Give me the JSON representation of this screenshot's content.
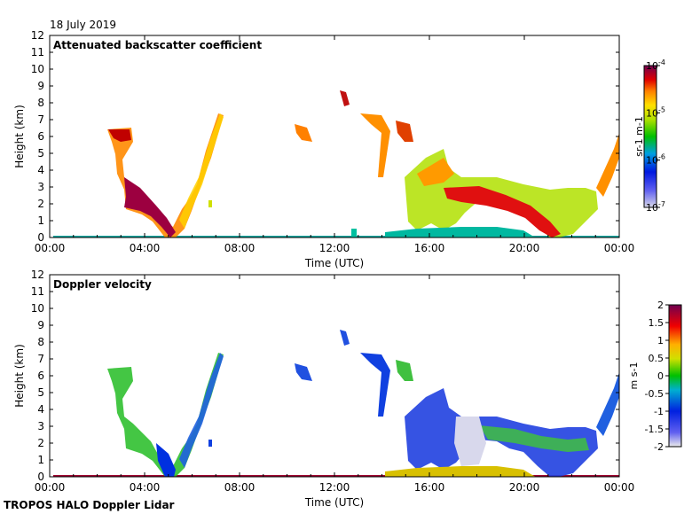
{
  "date_label": "18 July 2019",
  "footer": "TROPOS HALO Doppler Lidar",
  "chart_data": [
    {
      "type": "heatmap",
      "title": "Attenuated backscatter coefficient",
      "xlabel": "Time (UTC)",
      "ylabel": "Height (km)",
      "xlim": [
        0,
        24
      ],
      "ylim": [
        0,
        12
      ],
      "xticks": [
        "00:00",
        "04:00",
        "08:00",
        "12:00",
        "16:00",
        "20:00",
        "00:00"
      ],
      "yticks": [
        "0",
        "1",
        "2",
        "3",
        "4",
        "5",
        "6",
        "7",
        "8",
        "9",
        "10",
        "11",
        "12"
      ],
      "colorbar": {
        "scale": "log",
        "range": [
          1e-07,
          0.0001
        ],
        "tick_labels": [
          "10-4",
          "10-5",
          "10-6",
          "10-7"
        ],
        "unit": "sr-1 m-1"
      },
      "features": [
        {
          "time": [
            2.7,
            3.6
          ],
          "height": [
            5.7,
            6.5
          ],
          "level": "high"
        },
        {
          "time": [
            3.0,
            4.1
          ],
          "height": [
            3.0,
            5.0
          ],
          "level": "medium"
        },
        {
          "time": [
            3.7,
            5.5
          ],
          "height": [
            1.2,
            3.3
          ],
          "level": "very high"
        },
        {
          "time": [
            5.2,
            5.8
          ],
          "height": [
            0.0,
            1.5
          ],
          "level": "high"
        },
        {
          "time": [
            5.6,
            7.3
          ],
          "height": [
            1.0,
            7.4
          ],
          "level": "medium"
        },
        {
          "time": [
            10.4,
            11.3
          ],
          "height": [
            5.8,
            6.8
          ],
          "level": "medium"
        },
        {
          "time": [
            12.2,
            12.5
          ],
          "height": [
            7.8,
            8.7
          ],
          "level": "high"
        },
        {
          "time": [
            13.2,
            13.7
          ],
          "height": [
            6.5,
            7.5
          ],
          "level": "medium"
        },
        {
          "time": [
            13.8,
            15.6
          ],
          "height": [
            4.0,
            7.3
          ],
          "level": "medium"
        },
        {
          "time": [
            14.2,
            24.0
          ],
          "height": [
            0.0,
            0.6
          ],
          "level": "low"
        },
        {
          "time": [
            15.0,
            21.0
          ],
          "height": [
            0.5,
            4.8
          ],
          "level": "high"
        },
        {
          "time": [
            18.0,
            21.0
          ],
          "height": [
            1.5,
            3.0
          ],
          "level": "very high"
        },
        {
          "time": [
            21.0,
            23.0
          ],
          "height": [
            0.5,
            3.3
          ],
          "level": "low"
        },
        {
          "time": [
            22.9,
            24.0
          ],
          "height": [
            3.0,
            6.4
          ],
          "level": "medium"
        }
      ]
    },
    {
      "type": "heatmap",
      "title": "Doppler velocity",
      "xlabel": "Time (UTC)",
      "ylabel": "Height (km)",
      "xlim": [
        0,
        24
      ],
      "ylim": [
        0,
        12
      ],
      "xticks": [
        "00:00",
        "04:00",
        "08:00",
        "12:00",
        "16:00",
        "20:00",
        "00:00"
      ],
      "yticks": [
        "0",
        "1",
        "2",
        "3",
        "4",
        "5",
        "6",
        "7",
        "8",
        "9",
        "10",
        "11",
        "12"
      ],
      "colorbar": {
        "scale": "linear",
        "range": [
          -2,
          2
        ],
        "tick_labels": [
          "2",
          "1.5",
          "1",
          "0.5",
          "0",
          "-0.5",
          "-1",
          "-1.5",
          "-2"
        ],
        "unit": "m s-1"
      },
      "features": [
        {
          "time": [
            2.7,
            3.6
          ],
          "height": [
            5.7,
            6.5
          ],
          "velocity": -0.3
        },
        {
          "time": [
            3.0,
            4.3
          ],
          "height": [
            2.0,
            5.0
          ],
          "velocity": -0.2
        },
        {
          "time": [
            4.3,
            5.5
          ],
          "height": [
            0.0,
            2.0
          ],
          "velocity": -1.2
        },
        {
          "time": [
            5.6,
            7.3
          ],
          "height": [
            0.5,
            7.4
          ],
          "velocity": -1.1
        },
        {
          "time": [
            10.5,
            11.3
          ],
          "height": [
            6.0,
            6.8
          ],
          "velocity": -1.0
        },
        {
          "time": [
            12.2,
            12.5
          ],
          "height": [
            7.8,
            8.7
          ],
          "velocity": -1.2
        },
        {
          "time": [
            13.8,
            15.6
          ],
          "height": [
            4.0,
            7.3
          ],
          "velocity": -1.0
        },
        {
          "time": [
            14.2,
            21.0
          ],
          "height": [
            0.0,
            0.7
          ],
          "velocity": 0.5
        },
        {
          "time": [
            15.0,
            21.0
          ],
          "height": [
            0.7,
            4.8
          ],
          "velocity": -1.0
        },
        {
          "time": [
            17.0,
            18.5
          ],
          "height": [
            1.0,
            3.0
          ],
          "velocity": -1.9
        },
        {
          "time": [
            21.0,
            23.0
          ],
          "height": [
            0.7,
            3.3
          ],
          "velocity": -0.3
        },
        {
          "time": [
            22.9,
            24.0
          ],
          "height": [
            3.0,
            6.4
          ],
          "velocity": -1.2
        }
      ]
    }
  ]
}
